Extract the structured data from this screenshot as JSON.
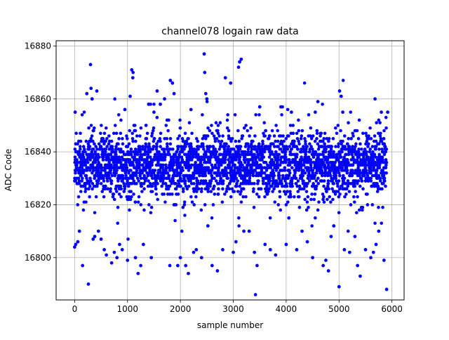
{
  "chart_data": {
    "type": "scatter",
    "title": "channel078 logain raw data",
    "xlabel": "sample number",
    "ylabel": "ADC Code",
    "xlim": [
      -350,
      6230
    ],
    "ylim": [
      16784,
      16882
    ],
    "x_ticks": [
      0,
      1000,
      2000,
      3000,
      4000,
      5000,
      6000
    ],
    "y_ticks": [
      16800,
      16820,
      16840,
      16860,
      16880
    ],
    "x_tick_labels": [
      "0",
      "1000",
      "2000",
      "3000",
      "4000",
      "5000",
      "6000"
    ],
    "y_tick_labels": [
      "16800",
      "16820",
      "16840",
      "16860",
      "16880"
    ],
    "grid": true,
    "marker_color": "#0000ff",
    "n_samples": 5900,
    "series": [
      {
        "values_summary": {
          "typical_low": 16822,
          "typical_high": 16848,
          "mean": 16835
        },
        "points": [
          [
            0,
            16804
          ],
          [
            10,
            16855
          ],
          [
            20,
            16805
          ],
          [
            40,
            16835
          ],
          [
            60,
            16806
          ],
          [
            90,
            16810
          ],
          [
            150,
            16797
          ],
          [
            230,
            16862
          ],
          [
            260,
            16790
          ],
          [
            300,
            16873
          ],
          [
            310,
            16864
          ],
          [
            330,
            16860
          ],
          [
            350,
            16807
          ],
          [
            380,
            16808
          ],
          [
            420,
            16863
          ],
          [
            450,
            16810
          ],
          [
            500,
            16807
          ],
          [
            560,
            16803
          ],
          [
            600,
            16801
          ],
          [
            700,
            16798
          ],
          [
            750,
            16802
          ],
          [
            800,
            16800
          ],
          [
            850,
            16805
          ],
          [
            900,
            16803
          ],
          [
            950,
            16856
          ],
          [
            1000,
            16799
          ],
          [
            1050,
            16861
          ],
          [
            1080,
            16871
          ],
          [
            1100,
            16868
          ],
          [
            1150,
            16800
          ],
          [
            1200,
            16794
          ],
          [
            1250,
            16797
          ],
          [
            1300,
            16805
          ],
          [
            1350,
            16850
          ],
          [
            1400,
            16858
          ],
          [
            1450,
            16800
          ],
          [
            1500,
            16855
          ],
          [
            1560,
            16863
          ],
          [
            1620,
            16858
          ],
          [
            1700,
            16860
          ],
          [
            1800,
            16797
          ],
          [
            1810,
            16867
          ],
          [
            1850,
            16866
          ],
          [
            1880,
            16862
          ],
          [
            1950,
            16797
          ],
          [
            2000,
            16800
          ],
          [
            2100,
            16797
          ],
          [
            2150,
            16794
          ],
          [
            2200,
            16856
          ],
          [
            2250,
            16802
          ],
          [
            2300,
            16803
          ],
          [
            2400,
            16800
          ],
          [
            2450,
            16877
          ],
          [
            2460,
            16870
          ],
          [
            2480,
            16862
          ],
          [
            2500,
            16860
          ],
          [
            2520,
            16812
          ],
          [
            2600,
            16797
          ],
          [
            2700,
            16795
          ],
          [
            2800,
            16803
          ],
          [
            2850,
            16868
          ],
          [
            2950,
            16866
          ],
          [
            3000,
            16802
          ],
          [
            3050,
            16806
          ],
          [
            3100,
            16872
          ],
          [
            3120,
            16874
          ],
          [
            3150,
            16875
          ],
          [
            3200,
            16810
          ],
          [
            3300,
            16810
          ],
          [
            3400,
            16802
          ],
          [
            3450,
            16797
          ],
          [
            3500,
            16857
          ],
          [
            3600,
            16805
          ],
          [
            3700,
            16803
          ],
          [
            3800,
            16801
          ],
          [
            3900,
            16857
          ],
          [
            4000,
            16805
          ],
          [
            4050,
            16815
          ],
          [
            4100,
            16855
          ],
          [
            4200,
            16803
          ],
          [
            4300,
            16810
          ],
          [
            4400,
            16806
          ],
          [
            4500,
            16800
          ],
          [
            4550,
            16855
          ],
          [
            4600,
            16859
          ],
          [
            4700,
            16797
          ],
          [
            4750,
            16799
          ],
          [
            4800,
            16795
          ],
          [
            4850,
            16808
          ],
          [
            4900,
            16812
          ],
          [
            5000,
            16789
          ],
          [
            5010,
            16863
          ],
          [
            5040,
            16861
          ],
          [
            5070,
            16855
          ],
          [
            5100,
            16803
          ],
          [
            5200,
            16802
          ],
          [
            5300,
            16808
          ],
          [
            5350,
            16797
          ],
          [
            5400,
            16793
          ],
          [
            5500,
            16803
          ],
          [
            5600,
            16800
          ],
          [
            5650,
            16802
          ],
          [
            5680,
            16860
          ],
          [
            5700,
            16805
          ],
          [
            5750,
            16810
          ],
          [
            5800,
            16855
          ],
          [
            5850,
            16799
          ],
          [
            5900,
            16788
          ],
          [
            5920,
            16855
          ]
        ]
      }
    ]
  }
}
